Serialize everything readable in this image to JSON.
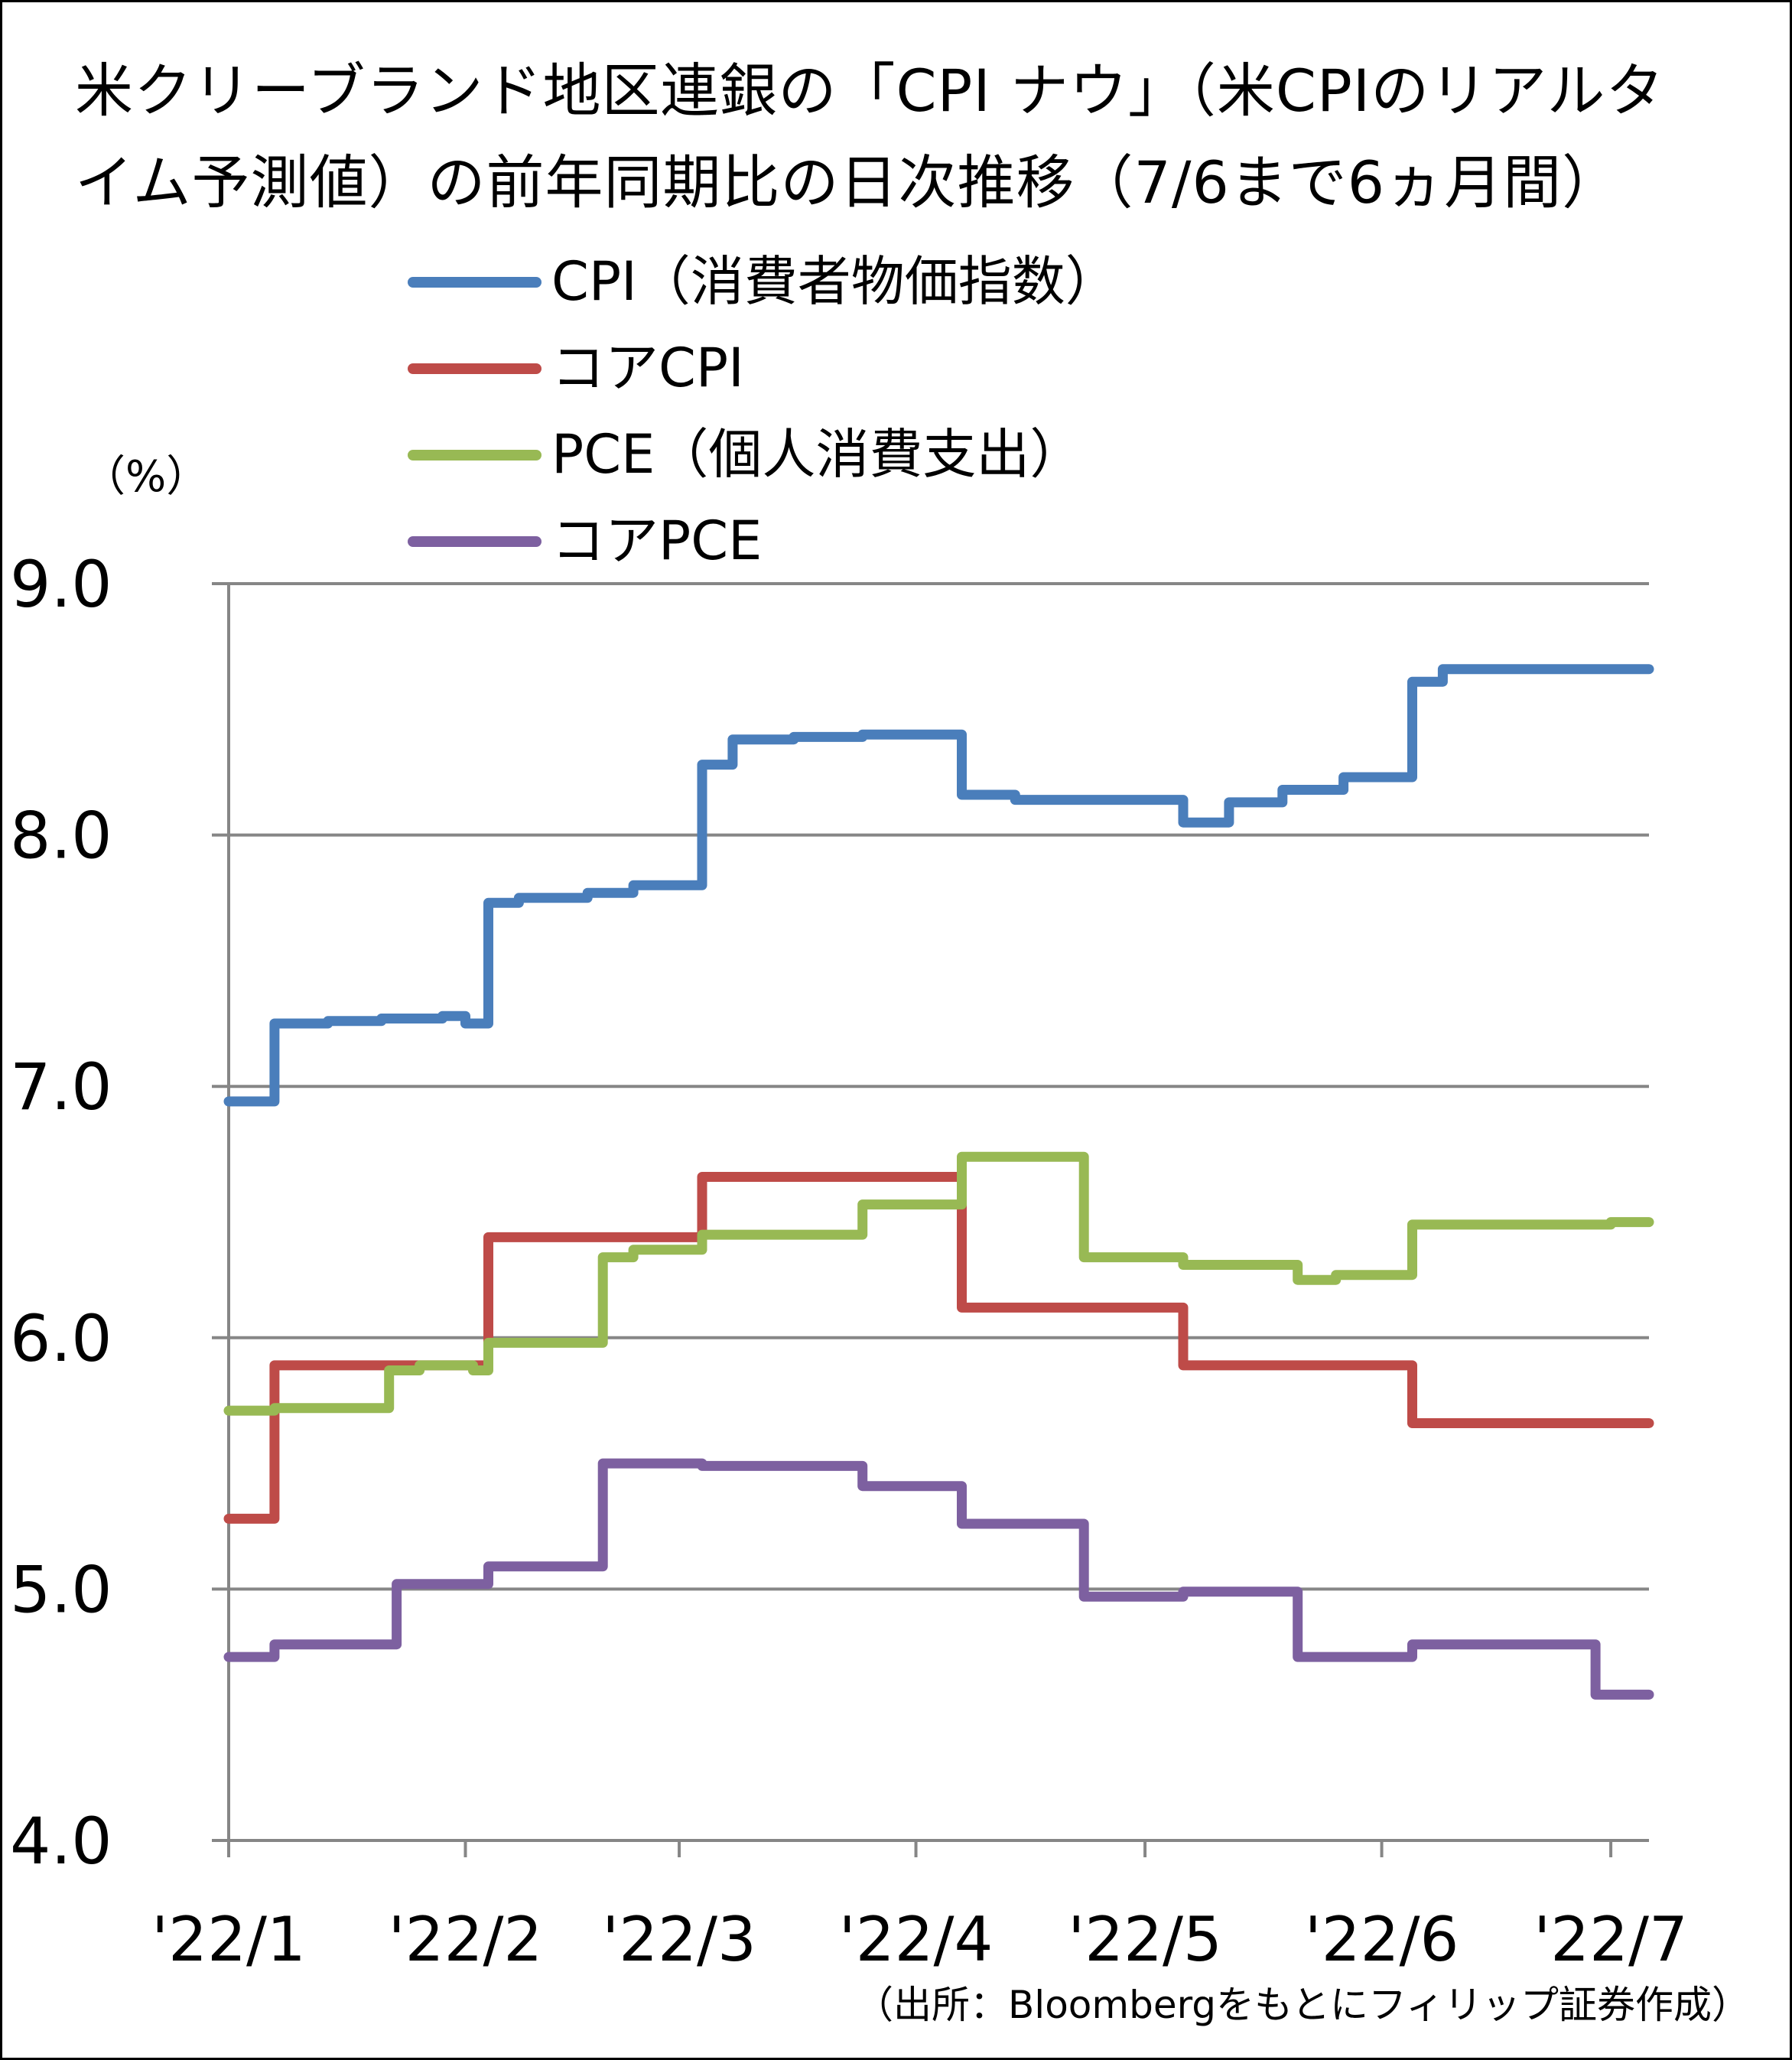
{
  "title": {
    "line1": "米クリーブランド地区連銀の「CPI ナウ」（米CPIのリアルタ",
    "line2": "イム予測値）の前年同期比の日次推移（7/6まで6ヵ月間）"
  },
  "unit_label": "（%）",
  "source": "（出所：Bloombergをもとにフィリップ証券作成）",
  "colors": {
    "cpi": "#4a7ebb",
    "core_cpi": "#be4b48",
    "pce": "#98b954",
    "core_pce": "#7d60a0",
    "grid": "#868686"
  },
  "chart_data": {
    "type": "line",
    "step": true,
    "x_unit": "date",
    "xlim": [
      "2022-01-01",
      "2022-07-06"
    ],
    "ylim": [
      4.0,
      9.0
    ],
    "yticks": [
      "9.0",
      "8.0",
      "7.0",
      "6.0",
      "5.0",
      "4.0"
    ],
    "xticks": [
      {
        "date": "2022-01-01",
        "label": "'22/1"
      },
      {
        "date": "2022-02-01",
        "label": "'22/2"
      },
      {
        "date": "2022-03-01",
        "label": "'22/3"
      },
      {
        "date": "2022-04-01",
        "label": "'22/4"
      },
      {
        "date": "2022-05-01",
        "label": "'22/5"
      },
      {
        "date": "2022-06-01",
        "label": "'22/6"
      },
      {
        "date": "2022-07-01",
        "label": "'22/7"
      }
    ],
    "grid": true,
    "legend_position": "top",
    "series": [
      {
        "key": "cpi",
        "name": "CPI（消費者物価指数）",
        "points": [
          [
            "2022-01-01",
            6.94
          ],
          [
            "2022-01-07",
            7.25
          ],
          [
            "2022-01-14",
            7.26
          ],
          [
            "2022-01-21",
            7.27
          ],
          [
            "2022-01-29",
            7.28
          ],
          [
            "2022-02-01",
            7.25
          ],
          [
            "2022-02-04",
            7.73
          ],
          [
            "2022-02-08",
            7.75
          ],
          [
            "2022-02-17",
            7.77
          ],
          [
            "2022-02-23",
            7.8
          ],
          [
            "2022-03-04",
            8.28
          ],
          [
            "2022-03-08",
            8.38
          ],
          [
            "2022-03-16",
            8.39
          ],
          [
            "2022-03-25",
            8.4
          ],
          [
            "2022-04-07",
            8.16
          ],
          [
            "2022-04-14",
            8.14
          ],
          [
            "2022-05-06",
            8.05
          ],
          [
            "2022-05-12",
            8.13
          ],
          [
            "2022-05-19",
            8.18
          ],
          [
            "2022-05-27",
            8.23
          ],
          [
            "2022-06-05",
            8.61
          ],
          [
            "2022-06-09",
            8.66
          ],
          [
            "2022-07-06",
            8.66
          ]
        ]
      },
      {
        "key": "core_cpi",
        "name": "コアCPI",
        "points": [
          [
            "2022-01-01",
            5.28
          ],
          [
            "2022-01-07",
            5.89
          ],
          [
            "2022-02-04",
            6.4
          ],
          [
            "2022-03-04",
            6.64
          ],
          [
            "2022-04-07",
            6.12
          ],
          [
            "2022-05-06",
            5.89
          ],
          [
            "2022-06-05",
            5.66
          ],
          [
            "2022-07-06",
            5.66
          ]
        ]
      },
      {
        "key": "pce",
        "name": "PCE（個人消費支出）",
        "points": [
          [
            "2022-01-01",
            5.71
          ],
          [
            "2022-01-07",
            5.72
          ],
          [
            "2022-01-22",
            5.87
          ],
          [
            "2022-01-26",
            5.89
          ],
          [
            "2022-02-02",
            5.87
          ],
          [
            "2022-02-04",
            5.98
          ],
          [
            "2022-02-19",
            6.32
          ],
          [
            "2022-02-23",
            6.35
          ],
          [
            "2022-03-04",
            6.41
          ],
          [
            "2022-03-25",
            6.53
          ],
          [
            "2022-04-07",
            6.72
          ],
          [
            "2022-04-23",
            6.32
          ],
          [
            "2022-05-06",
            6.29
          ],
          [
            "2022-05-21",
            6.23
          ],
          [
            "2022-05-26",
            6.25
          ],
          [
            "2022-06-05",
            6.45
          ],
          [
            "2022-07-01",
            6.46
          ],
          [
            "2022-07-06",
            6.46
          ]
        ]
      },
      {
        "key": "core_pce",
        "name": "コアPCE",
        "points": [
          [
            "2022-01-01",
            4.73
          ],
          [
            "2022-01-07",
            4.78
          ],
          [
            "2022-01-23",
            5.02
          ],
          [
            "2022-02-04",
            5.09
          ],
          [
            "2022-02-19",
            5.5
          ],
          [
            "2022-03-04",
            5.49
          ],
          [
            "2022-03-25",
            5.41
          ],
          [
            "2022-04-07",
            5.26
          ],
          [
            "2022-04-23",
            4.97
          ],
          [
            "2022-05-06",
            4.99
          ],
          [
            "2022-05-21",
            4.73
          ],
          [
            "2022-06-05",
            4.78
          ],
          [
            "2022-06-29",
            4.58
          ],
          [
            "2022-07-06",
            4.58
          ]
        ]
      }
    ]
  }
}
